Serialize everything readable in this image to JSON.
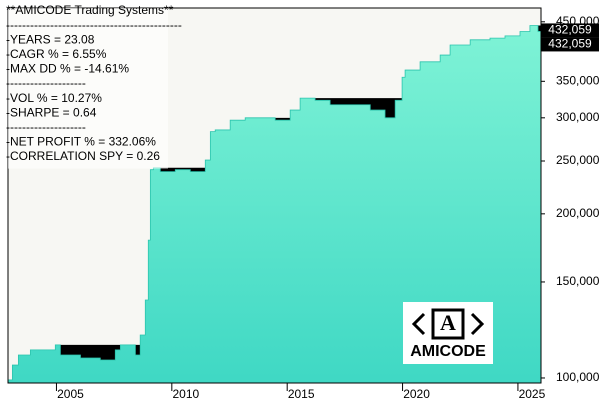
{
  "chart_data": {
    "type": "area",
    "annotations": [
      "**AMICODE Trading Systems**",
      "--------------------------------------------",
      "-YEARS = 23.08",
      "-CAGR % = 6.55%",
      "-MAX DD % = -14.61%",
      "--------------------",
      "-VOL % = 10.27%",
      "-SHARPE = 0.64",
      "--------------------",
      "-NET PROFIT % = 332.06%",
      "-CORRELATION SPY = 0.26"
    ],
    "logo": "AMICODE",
    "logo_mark": "A",
    "last_value_label": "432,059",
    "x": [
      2002.92,
      2003.09,
      2003.35,
      2003.87,
      2004.95,
      2005.17,
      2006.04,
      2006.9,
      2007.55,
      2007.77,
      2008.11,
      2008.42,
      2008.63,
      2008.85,
      2008.98,
      2009.07,
      2009.2,
      2009.5,
      2010.15,
      2010.8,
      2011.45,
      2011.67,
      2011.88,
      2012.53,
      2013.18,
      2013.83,
      2014.48,
      2015.13,
      2015.56,
      2016.21,
      2016.86,
      2017.73,
      2018.6,
      2019.24,
      2019.68,
      2019.98,
      2020.11,
      2020.76,
      2021.19,
      2021.63,
      2022.06,
      2022.93,
      2023.79,
      2024.44,
      2025.09,
      2025.52,
      2025.87,
      2026.0
    ],
    "values": [
      99200,
      105600,
      110200,
      112600,
      115000,
      110200,
      108800,
      107900,
      112600,
      115000,
      115000,
      110200,
      119900,
      139000,
      179000,
      241000,
      243000,
      239000,
      241000,
      239000,
      251000,
      283000,
      285000,
      297000,
      300000,
      300000,
      297000,
      310000,
      326000,
      323000,
      317000,
      317000,
      310000,
      300000,
      323000,
      356000,
      367000,
      380000,
      380000,
      391000,
      408000,
      417000,
      420000,
      424000,
      432000,
      443000,
      432059,
      432059
    ],
    "color": "#5ee6cc",
    "drawdown_color": "#000000",
    "xlim": [
      2002.9,
      2026.0
    ],
    "xticks": [
      2005,
      2010,
      2015,
      2020,
      2025
    ],
    "ylim": [
      97900,
      477000
    ],
    "log_y": true,
    "yticks": [
      {
        "value": 100000,
        "label": "100,000"
      },
      {
        "value": 150000,
        "label": "150,000"
      },
      {
        "value": 200000,
        "label": "200,000"
      },
      {
        "value": 250000,
        "label": "250,000"
      },
      {
        "value": 300000,
        "label": "300,000"
      },
      {
        "value": 350000,
        "label": "350,000"
      },
      {
        "value": 450000,
        "label": "450,000"
      }
    ]
  }
}
